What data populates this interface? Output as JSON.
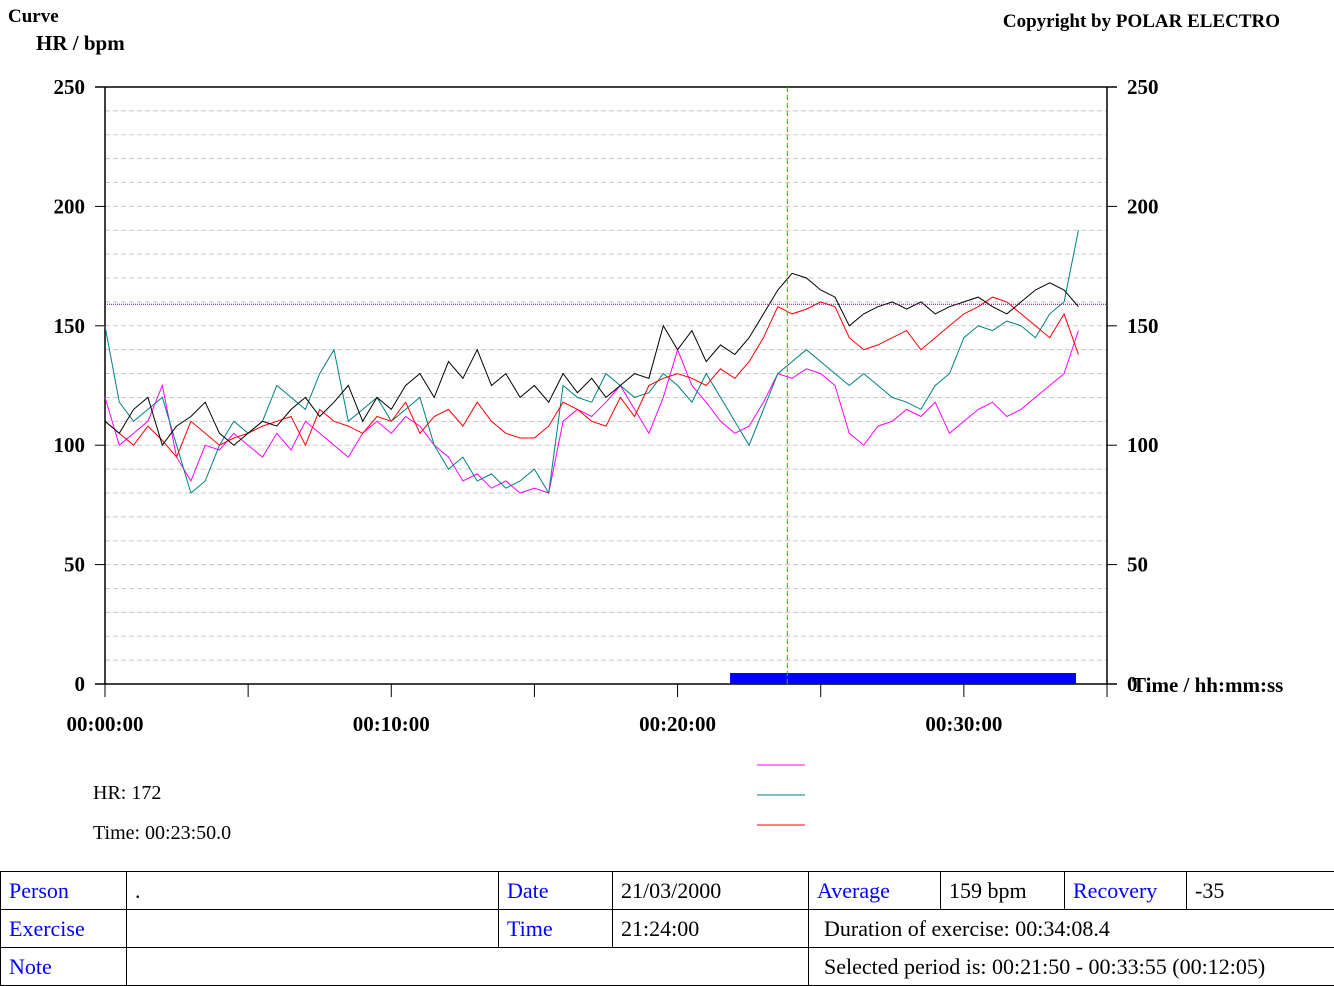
{
  "chart_data": {
    "type": "line",
    "title": "Curve",
    "copyright": "Copyright by POLAR ELECTRO",
    "ylabel": "HR / bpm",
    "xlabel": "Time / hh:mm:ss",
    "x": [
      0,
      30,
      60,
      90,
      120,
      150,
      180,
      210,
      240,
      270,
      300,
      330,
      360,
      390,
      420,
      450,
      480,
      510,
      540,
      570,
      600,
      630,
      660,
      690,
      720,
      750,
      780,
      810,
      840,
      870,
      900,
      930,
      960,
      990,
      1020,
      1050,
      1080,
      1110,
      1140,
      1170,
      1200,
      1230,
      1260,
      1290,
      1320,
      1350,
      1380,
      1410,
      1440,
      1470,
      1500,
      1530,
      1560,
      1590,
      1620,
      1650,
      1680,
      1710,
      1740,
      1770,
      1800,
      1830,
      1860,
      1890,
      1920,
      1950,
      1980,
      2010,
      2040
    ],
    "series": [
      {
        "color": "#ff00ff",
        "values": [
          120,
          100,
          105,
          110,
          125,
          95,
          85,
          100,
          98,
          105,
          100,
          95,
          105,
          98,
          110,
          105,
          100,
          95,
          105,
          110,
          105,
          112,
          108,
          100,
          95,
          85,
          88,
          82,
          85,
          80,
          82,
          80,
          110,
          115,
          112,
          118,
          125,
          115,
          105,
          120,
          140,
          125,
          118,
          110,
          105,
          108,
          118,
          130,
          128,
          132,
          130,
          125,
          105,
          100,
          108,
          110,
          115,
          112,
          118,
          105,
          110,
          115,
          118,
          112,
          115,
          120,
          125,
          130,
          148
        ]
      },
      {
        "color": "#008080",
        "values": [
          150,
          118,
          110,
          115,
          120,
          100,
          80,
          85,
          100,
          110,
          105,
          110,
          125,
          120,
          115,
          130,
          140,
          110,
          115,
          120,
          110,
          115,
          120,
          100,
          90,
          95,
          85,
          88,
          82,
          85,
          90,
          80,
          125,
          120,
          118,
          130,
          125,
          120,
          122,
          130,
          125,
          118,
          130,
          120,
          110,
          100,
          115,
          130,
          135,
          140,
          135,
          130,
          125,
          130,
          125,
          120,
          118,
          115,
          125,
          130,
          145,
          150,
          148,
          152,
          150,
          145,
          155,
          160,
          190
        ]
      },
      {
        "color": "#ff0000",
        "values": [
          110,
          105,
          100,
          108,
          102,
          95,
          110,
          105,
          100,
          103,
          105,
          108,
          110,
          112,
          100,
          115,
          110,
          108,
          105,
          112,
          110,
          118,
          105,
          112,
          115,
          108,
          118,
          110,
          105,
          103,
          103,
          108,
          118,
          115,
          110,
          108,
          120,
          112,
          125,
          128,
          130,
          128,
          125,
          132,
          128,
          135,
          145,
          158,
          155,
          157,
          160,
          158,
          145,
          140,
          142,
          145,
          148,
          140,
          145,
          150,
          155,
          158,
          162,
          160,
          155,
          150,
          145,
          155,
          138
        ]
      },
      {
        "color": "#000000",
        "values": [
          110,
          105,
          115,
          120,
          100,
          108,
          112,
          118,
          105,
          100,
          105,
          110,
          108,
          115,
          120,
          112,
          118,
          125,
          110,
          120,
          115,
          125,
          130,
          120,
          135,
          128,
          140,
          125,
          130,
          120,
          125,
          118,
          130,
          122,
          128,
          120,
          125,
          130,
          128,
          150,
          140,
          148,
          135,
          142,
          138,
          145,
          155,
          165,
          172,
          170,
          165,
          162,
          150,
          155,
          158,
          160,
          157,
          160,
          155,
          158,
          160,
          162,
          158,
          155,
          160,
          165,
          168,
          165,
          158
        ]
      }
    ],
    "xlim": [
      0,
      2100
    ],
    "xticks": [
      {
        "value": 0,
        "label": "00:00:00"
      },
      {
        "value": 600,
        "label": "00:10:00"
      },
      {
        "value": 1200,
        "label": "00:20:00"
      },
      {
        "value": 1800,
        "label": "00:30:00"
      }
    ],
    "xminor_ticks": [
      300,
      900,
      1500,
      2100
    ],
    "ylim": [
      0,
      250
    ],
    "yticks": [
      0,
      50,
      100,
      150,
      200,
      250
    ],
    "yminor_ticks": [
      10,
      20,
      30,
      40,
      60,
      70,
      80,
      90,
      110,
      120,
      130,
      140,
      160,
      170,
      180,
      190,
      210,
      220,
      230,
      240
    ],
    "grid": true,
    "reference_line": {
      "value": 159,
      "color": "#800080"
    },
    "cursor": {
      "x": 1430,
      "color": "#00cc00"
    },
    "selection": {
      "range": [
        1310,
        2035
      ],
      "color": "#0000ff"
    },
    "readout": [
      "HR: 172",
      "Time: 00:23:50.0"
    ]
  },
  "table": {
    "rows": [
      [
        "Person",
        ".",
        "Date",
        "21/03/2000",
        "Average",
        "159 bpm",
        "Recovery",
        "-35"
      ],
      [
        "Exercise",
        "Time",
        "21:24:00",
        "Duration of exercise: 00:34:08.4"
      ],
      [
        "Note",
        "Selected period is: 00:21:50 - 00:33:55 (00:12:05)"
      ]
    ]
  }
}
